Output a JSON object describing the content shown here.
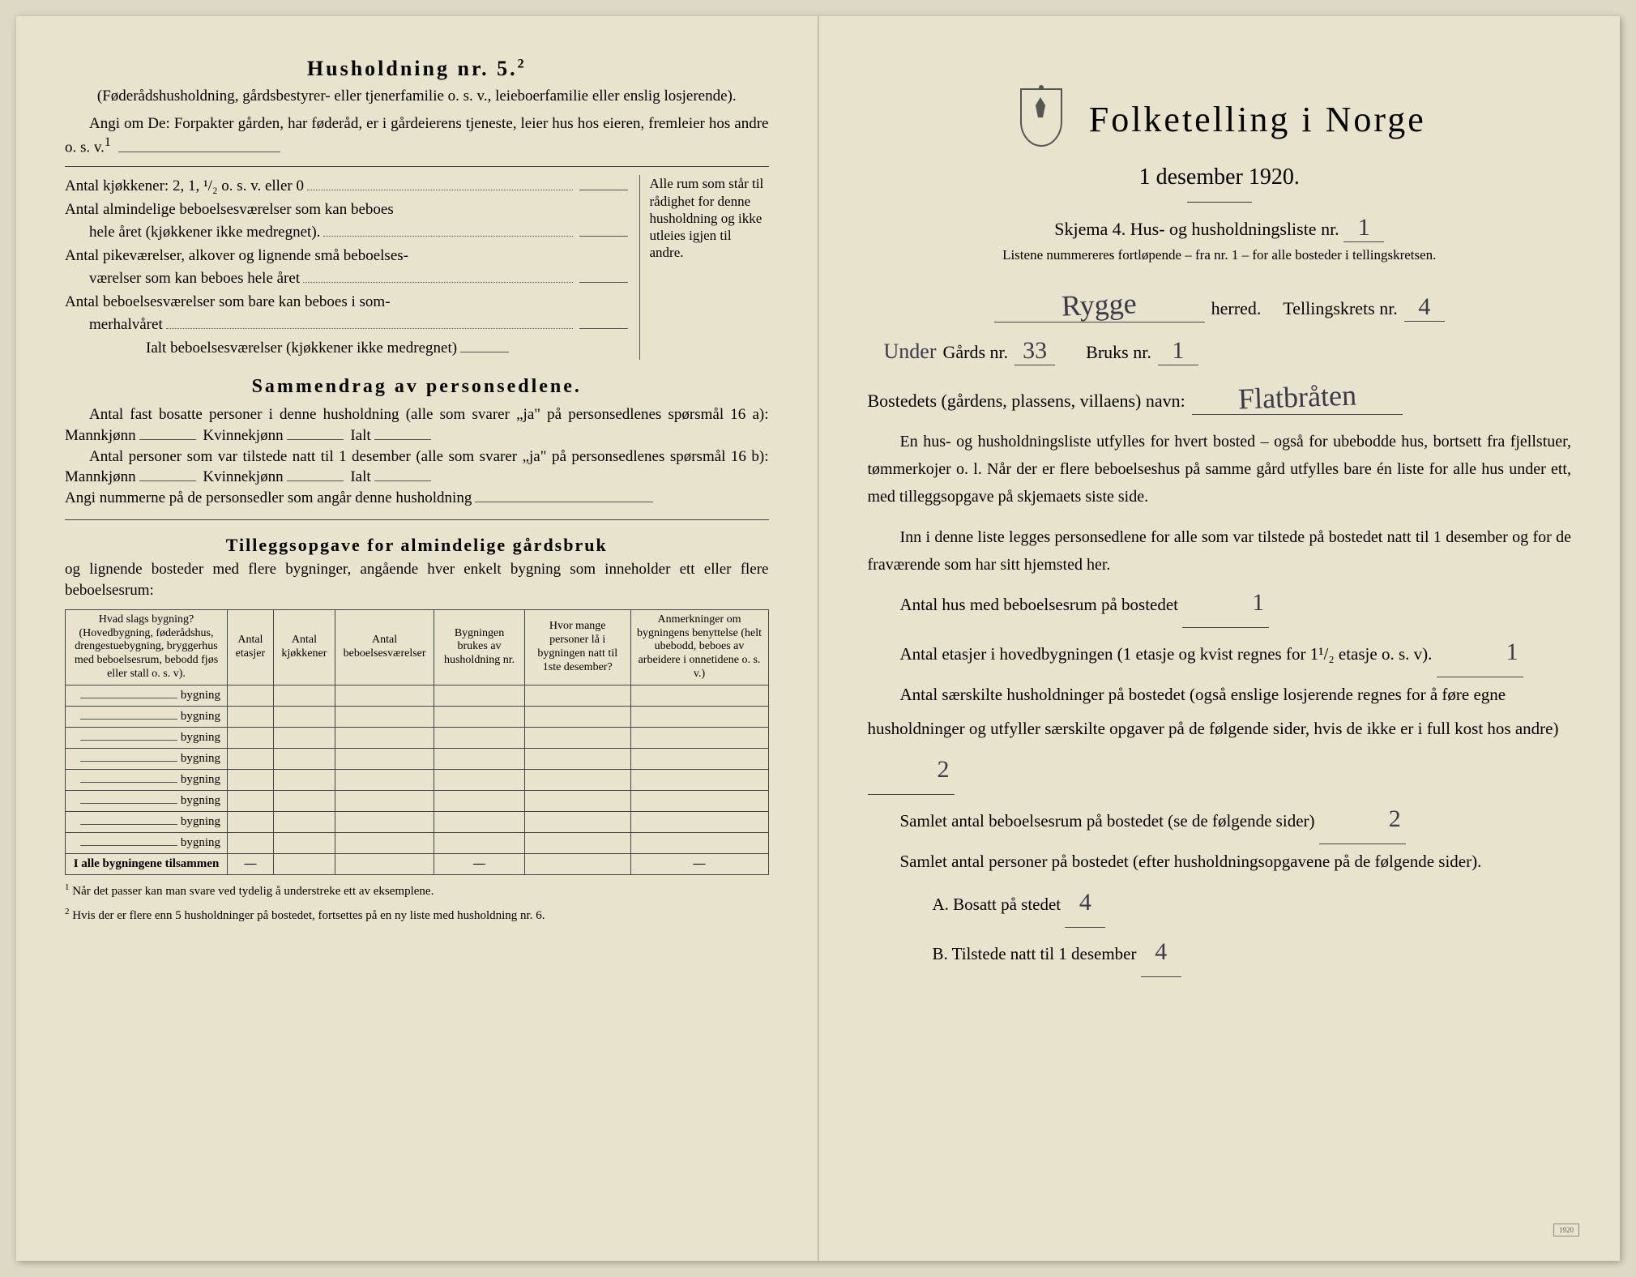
{
  "left": {
    "heading": "Husholdning nr. 5.",
    "heading_sup": "2",
    "intro_paren": "(Føderådshusholdning, gårdsbestyrer- eller tjenerfamilie o. s. v., leieboerfamilie eller enslig losjerende).",
    "angi": "Angi om De: Forpakter gården, har føderåd, er i gårdeierens tjeneste, leier hus hos eieren, fremleier hos andre o. s. v.",
    "angi_sup": "1",
    "rooms": {
      "l1": "Antal kjøkkener: 2, 1, ¹/₂ o. s. v. eller 0",
      "l2a": "Antal almindelige beboelsesværelser som kan beboes",
      "l2b": "hele året (kjøkkener ikke medregnet).",
      "l3a": "Antal pikeværelser, alkover og lignende små beboelses-",
      "l3b": "værelser som kan beboes hele året",
      "l4a": "Antal beboelsesværelser som bare kan beboes i som-",
      "l4b": "merhalvåret",
      "l5": "Ialt beboelsesværelser (kjøkkener ikke medregnet)",
      "side": "Alle rum som står til rådighet for denne husholdning og ikke utleies igjen til andre."
    },
    "samm_h": "Sammendrag av personsedlene.",
    "samm_p1": "Antal fast bosatte personer i denne husholdning (alle som svarer „ja\" på personsedlenes spørsmål 16 a): Mannkjønn",
    "samm_kv": "Kvinnekjønn",
    "samm_ialt": "Ialt",
    "samm_p2": "Antal personer som var tilstede natt til 1 desember (alle som svarer „ja\" på personsedlenes spørsmål 16 b): Mannkjønn",
    "samm_p3": "Angi nummerne på de personsedler som angår denne husholdning",
    "till_h": "Tilleggsopgave for almindelige gårdsbruk",
    "till_p": "og lignende bosteder med flere bygninger, angående hver enkelt bygning som inneholder ett eller flere beboelsesrum:",
    "table": {
      "h1": "Hvad slags bygning?\n(Hovedbygning, føderådshus, drengestuebygning, bryggerhus med beboelsesrum, bebodd fjøs eller stall o. s. v).",
      "h2": "Antal etasjer",
      "h3": "Antal kjøkkener",
      "h4": "Antal beboelsesværelser",
      "h5": "Bygningen brukes av husholdning nr.",
      "h6": "Hvor mange personer lå i bygningen natt til 1ste desember?",
      "h7": "Anmerkninger om bygningens benyttelse (helt ubebodd, beboes av arbeidere i onnetidene o. s. v.)",
      "row_label": "bygning",
      "total": "I alle bygningene tilsammen"
    },
    "fn1": "Når det passer kan man svare ved tydelig å understreke ett av eksemplene.",
    "fn2": "Hvis der er flere enn 5 husholdninger på bostedet, fortsettes på en ny liste med husholdning nr. 6."
  },
  "right": {
    "title": "Folketelling i Norge",
    "date": "1 desember 1920.",
    "skjema": "Skjema 4.  Hus- og husholdningsliste nr.",
    "skjema_val": "1",
    "listnote": "Listene nummereres fortløpende – fra nr. 1 – for alle bosteder i tellingskretsen.",
    "herred_val": "Rygge",
    "herred_lbl": "herred.",
    "tkrets_lbl": "Tellingskrets nr.",
    "tkrets_val": "4",
    "under_prefix": "Under",
    "gards_lbl": "Gårds nr.",
    "gards_val": "33",
    "bruks_lbl": "Bruks nr.",
    "bruks_val": "1",
    "bosted_lbl": "Bostedets (gårdens, plassens, villaens) navn:",
    "bosted_val": "Flatbråten",
    "para1": "En hus- og husholdningsliste utfylles for hvert bosted – også for ubebodde hus, bortsett fra fjellstuer, tømmerkojer o. l.  Når der er flere beboelseshus på samme gård utfylles bare én liste for alle hus under ett, med tilleggsopgave på skjemaets siste side.",
    "para2": "Inn i denne liste legges personsedlene for alle som var tilstede på bostedet natt til 1 desember og for de fraværende som har sitt hjemsted her.",
    "q1": "Antal hus med beboelsesrum på bostedet",
    "q1_val": "1",
    "q2a": "Antal etasjer i hovedbygningen (1 etasje og kvist regnes for 1¹/₂ etasje o. s. v).",
    "q2_val": "1",
    "q3": "Antal særskilte husholdninger på bostedet (også enslige losjerende regnes for å føre egne husholdninger og utfyller særskilte opgaver på de følgende sider, hvis de ikke er i full kost hos andre)",
    "q3_val": "2",
    "q4": "Samlet antal beboelsesrum på bostedet (se de følgende sider)",
    "q4_val": "2",
    "q5": "Samlet antal personer på bostedet (efter husholdningsopgavene på de følgende sider).",
    "qA": "A.  Bosatt på stedet",
    "qA_val": "4",
    "qB": "B.  Tilstede natt til 1 desember",
    "qB_val": "4",
    "stamp": "1920"
  },
  "colors": {
    "paper": "#e8e3cc",
    "ink": "#2a2a2a",
    "hand": "#3a3a4a"
  }
}
